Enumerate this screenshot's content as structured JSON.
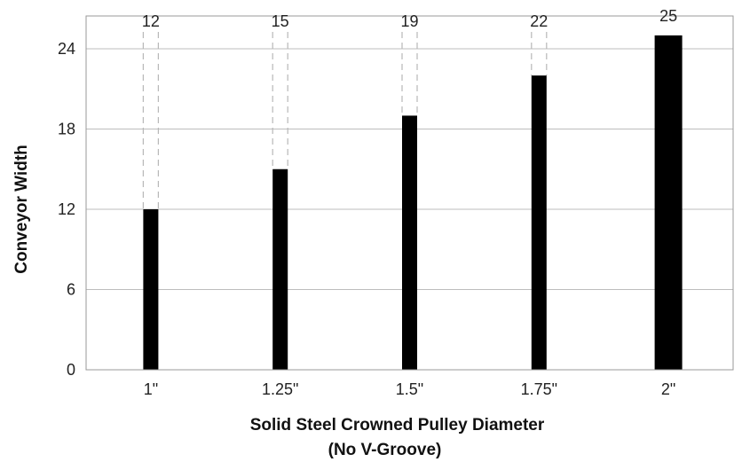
{
  "chart_data": {
    "type": "bar",
    "categories": [
      "1\"",
      "1.25\"",
      "1.5\"",
      "1.75\"",
      "2\""
    ],
    "values": [
      12,
      15,
      19,
      22,
      25
    ],
    "data_labels": [
      "12",
      "15",
      "19",
      "22",
      "25"
    ],
    "ylim": [
      0,
      24
    ],
    "yticks": [
      0,
      6,
      12,
      18,
      24
    ],
    "xlabel": [
      "Solid Steel Crowned Pulley Diameter",
      "(No V-Groove)"
    ],
    "ylabel": "Conveyor Width",
    "grid": "horizontal",
    "legend": "none",
    "bar_color": "#000000",
    "gridline_color": "#bdbdbd",
    "guide_line_style": "dashed"
  }
}
